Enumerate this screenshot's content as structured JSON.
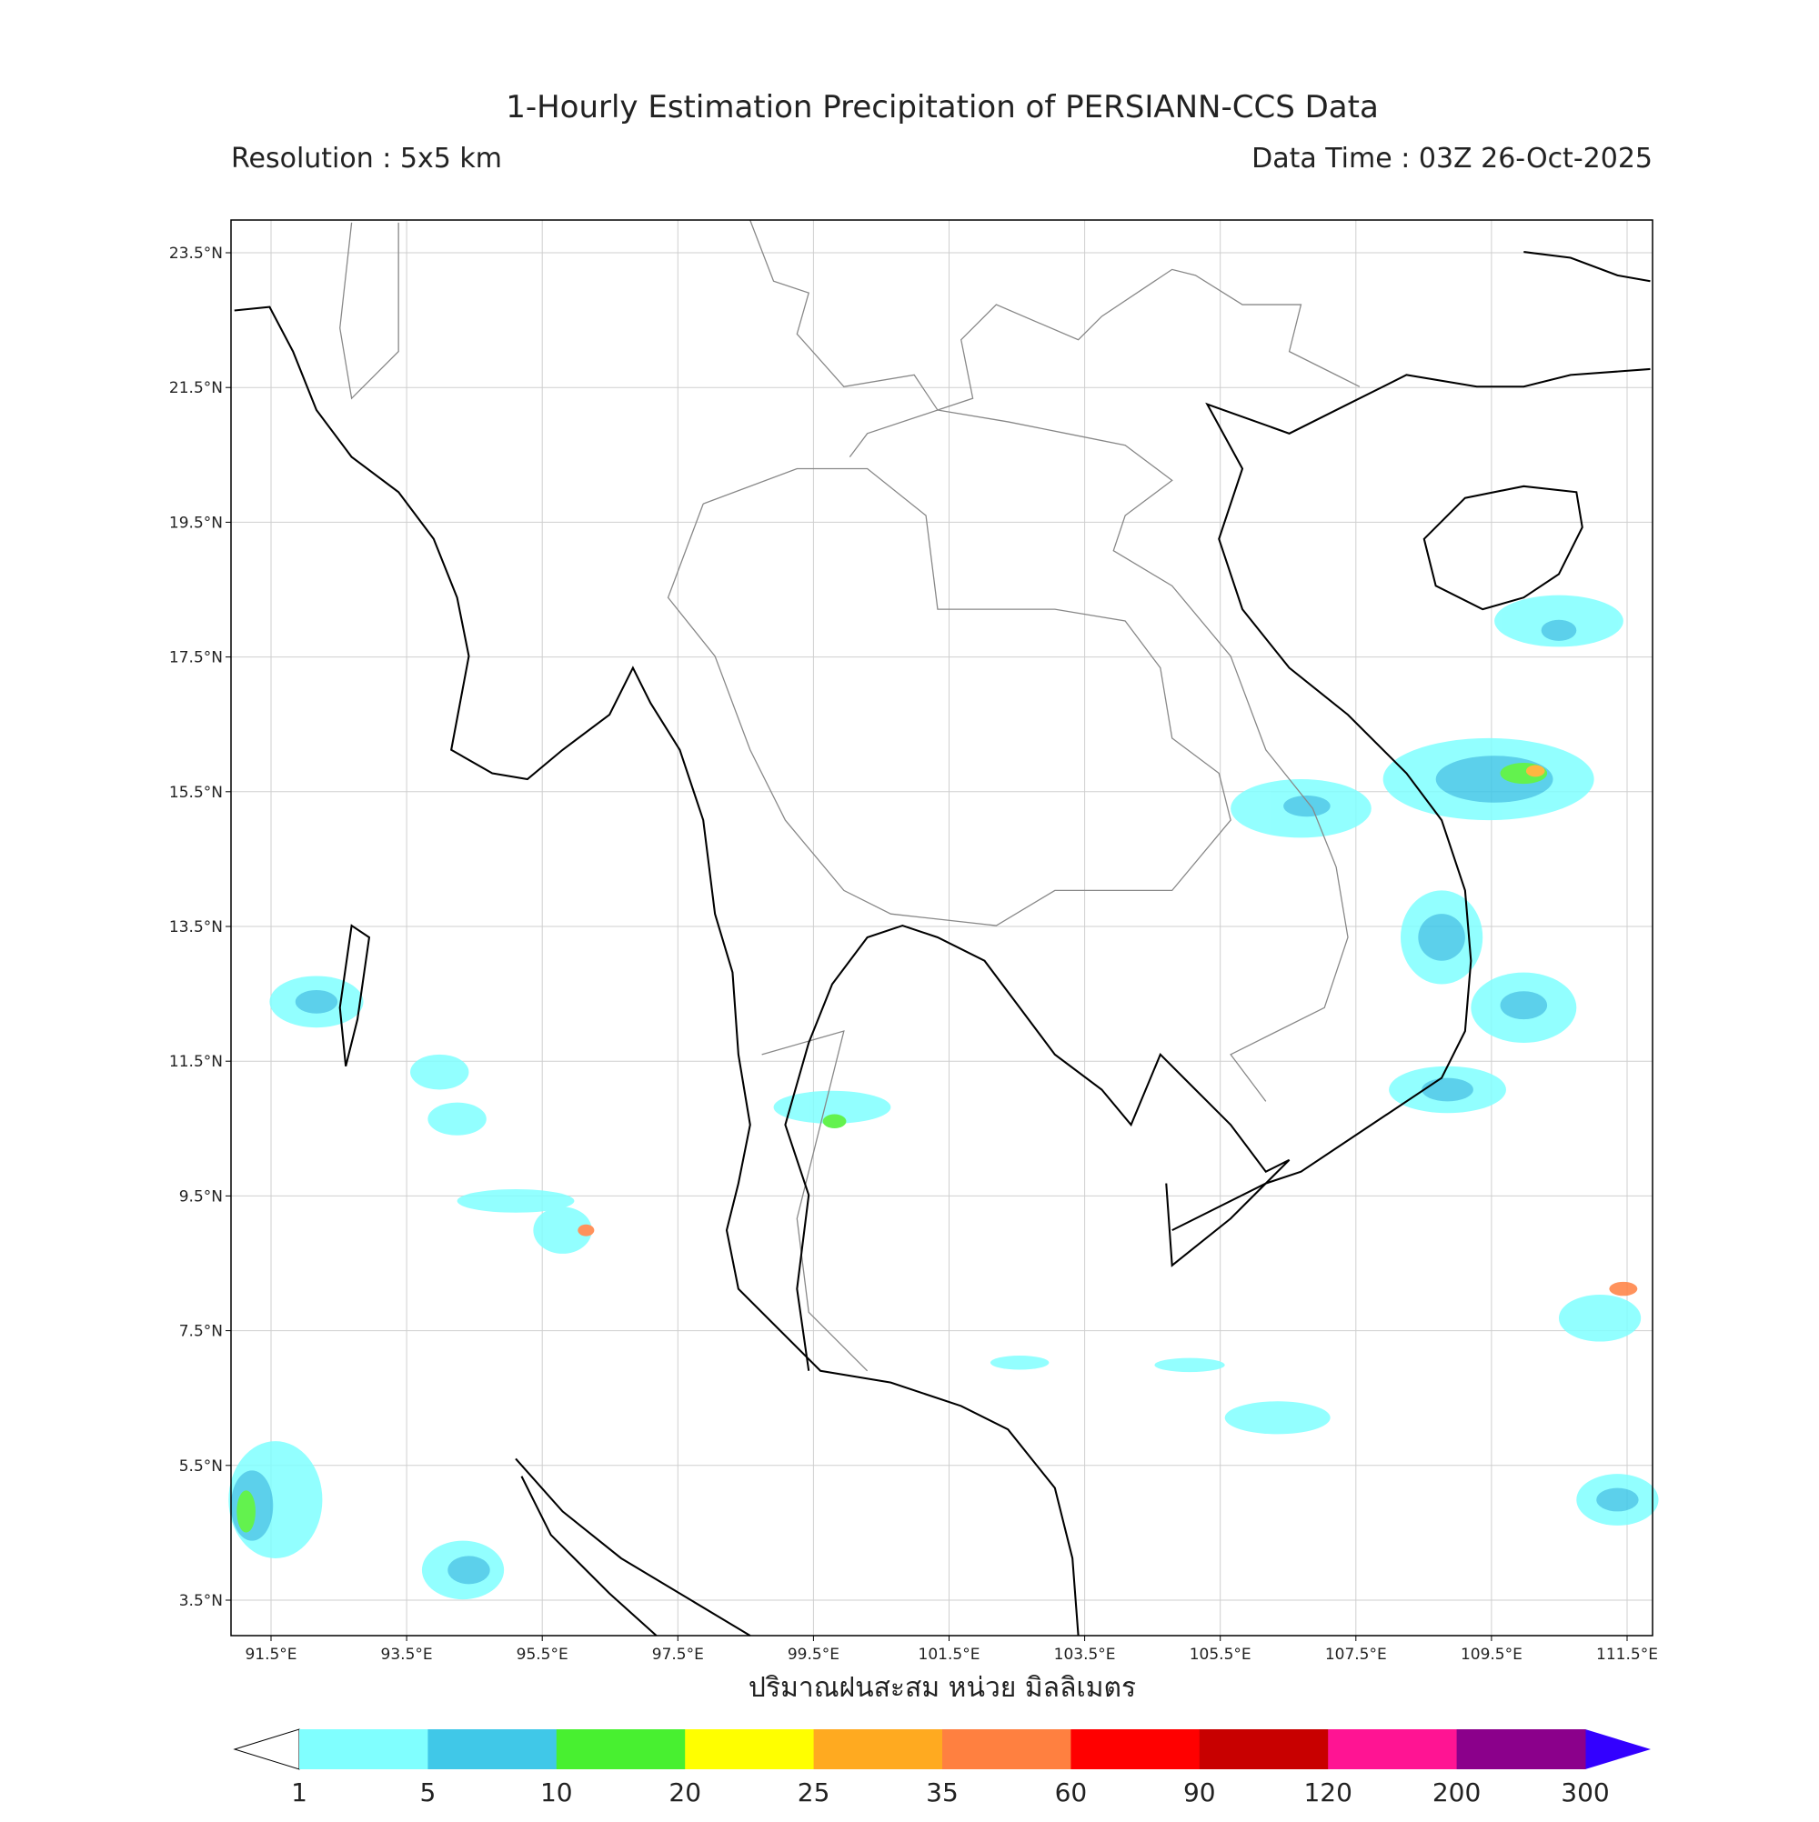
{
  "header": {
    "title": "1-Hourly Estimation Precipitation of PERSIANN-CCS Data",
    "resolution": "Resolution : 5x5 km",
    "data_time": "Data Time : 03Z 26-Oct-2025"
  },
  "map": {
    "lat_labels": [
      "23.5°N",
      "21.5°N",
      "19.5°N",
      "17.5°N",
      "15.5°N",
      "13.5°N",
      "11.5°N",
      "9.5°N",
      "7.5°N",
      "5.5°N",
      "3.5°N"
    ],
    "lon_labels": [
      "91.5°E",
      "93.5°E",
      "95.5°E",
      "97.5°E",
      "99.5°E",
      "101.5°E",
      "103.5°E",
      "105.5°E",
      "107.5°E",
      "109.5°E",
      "111.5°E"
    ],
    "x_label": "ปริมาณฝนสะสม หน่วย มิลลิเมตร"
  },
  "colorbar": {
    "bounds": [
      1,
      5,
      10,
      20,
      25,
      35,
      60,
      90,
      120,
      200,
      300
    ],
    "colors": [
      "#80ffff",
      "#40c8e8",
      "#48f030",
      "#ffff00",
      "#ffaa20",
      "#ff8040",
      "#ff0000",
      "#c80000",
      "#ff1493",
      "#8b008b"
    ]
  }
}
